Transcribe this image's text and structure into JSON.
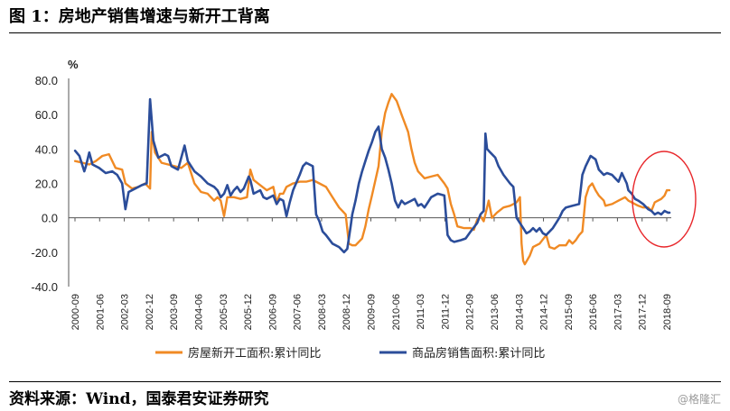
{
  "header": {
    "title": "图 1：房地产销售增速与新开工背离"
  },
  "footer": {
    "source": "资料来源：Wind，国泰君安证券研究",
    "watermark": "@格隆汇"
  },
  "chart_data": {
    "type": "line",
    "unit_label": "%",
    "ylim": [
      -40,
      80
    ],
    "y_ticks": [
      80.0,
      60.0,
      40.0,
      20.0,
      0.0,
      -20.0,
      -40.0
    ],
    "y_tick_labels": [
      "80.0",
      "60.0",
      "40.0",
      "20.0",
      "0.0",
      "-20.0",
      "-40.0"
    ],
    "x_tick_labels": [
      "2000-09",
      "2001-06",
      "2002-03",
      "2002-12",
      "2003-09",
      "2004-06",
      "2005-03",
      "2005-12",
      "2006-09",
      "2007-06",
      "2008-03",
      "2008-12",
      "2009-09",
      "2010-06",
      "2011-03",
      "2011-12",
      "2012-09",
      "2013-06",
      "2014-03",
      "2014-12",
      "2015-09",
      "2016-06",
      "2017-03",
      "2017-12",
      "2018-09"
    ],
    "grid": false,
    "legend_position": "bottom",
    "highlight": {
      "type": "ellipse",
      "color": "#e8262a",
      "note": "2017-12 至 2018-09"
    },
    "series": [
      {
        "name": "房屋新开工面积:累计同比",
        "color": "#f08a24",
        "points": [
          [
            2000.67,
            33
          ],
          [
            2000.9,
            32
          ],
          [
            2001.1,
            31
          ],
          [
            2001.3,
            33
          ],
          [
            2001.5,
            36
          ],
          [
            2001.7,
            37
          ],
          [
            2001.9,
            29
          ],
          [
            2002.1,
            28
          ],
          [
            2002.2,
            20
          ],
          [
            2002.4,
            17
          ],
          [
            2002.6,
            18
          ],
          [
            2002.8,
            20
          ],
          [
            2002.95,
            17
          ],
          [
            2003.0,
            50
          ],
          [
            2003.1,
            38
          ],
          [
            2003.3,
            32
          ],
          [
            2003.5,
            31
          ],
          [
            2003.7,
            30
          ],
          [
            2003.9,
            29
          ],
          [
            2004.1,
            32
          ],
          [
            2004.3,
            20
          ],
          [
            2004.5,
            15
          ],
          [
            2004.7,
            14
          ],
          [
            2004.9,
            10
          ],
          [
            2005.0,
            12
          ],
          [
            2005.1,
            10
          ],
          [
            2005.2,
            1
          ],
          [
            2005.3,
            12
          ],
          [
            2005.5,
            12
          ],
          [
            2005.7,
            11
          ],
          [
            2005.9,
            12
          ],
          [
            2006.0,
            28
          ],
          [
            2006.1,
            22
          ],
          [
            2006.3,
            19
          ],
          [
            2006.5,
            16
          ],
          [
            2006.7,
            18
          ],
          [
            2006.8,
            9
          ],
          [
            2006.9,
            14
          ],
          [
            2007.0,
            14
          ],
          [
            2007.1,
            18
          ],
          [
            2007.3,
            20
          ],
          [
            2007.5,
            21
          ],
          [
            2007.7,
            21
          ],
          [
            2007.9,
            22
          ],
          [
            2008.1,
            20
          ],
          [
            2008.3,
            18
          ],
          [
            2008.5,
            12
          ],
          [
            2008.7,
            6
          ],
          [
            2008.9,
            2
          ],
          [
            2009.0,
            -15
          ],
          [
            2009.1,
            -16
          ],
          [
            2009.2,
            -16
          ],
          [
            2009.4,
            -12
          ],
          [
            2009.5,
            -5
          ],
          [
            2009.6,
            5
          ],
          [
            2009.7,
            13
          ],
          [
            2009.9,
            30
          ],
          [
            2010.0,
            50
          ],
          [
            2010.1,
            61
          ],
          [
            2010.2,
            67
          ],
          [
            2010.3,
            72
          ],
          [
            2010.45,
            68
          ],
          [
            2010.6,
            60
          ],
          [
            2010.8,
            50
          ],
          [
            2010.9,
            40
          ],
          [
            2011.0,
            32
          ],
          [
            2011.1,
            27
          ],
          [
            2011.3,
            23
          ],
          [
            2011.5,
            24
          ],
          [
            2011.7,
            25
          ],
          [
            2011.9,
            20
          ],
          [
            2012.0,
            17
          ],
          [
            2012.1,
            8
          ],
          [
            2012.2,
            2
          ],
          [
            2012.3,
            -5
          ],
          [
            2012.5,
            -6
          ],
          [
            2012.7,
            -6
          ],
          [
            2012.8,
            -7
          ],
          [
            2012.9,
            -1
          ],
          [
            2013.0,
            1
          ],
          [
            2013.1,
            -2
          ],
          [
            2013.2,
            6
          ],
          [
            2013.25,
            10
          ],
          [
            2013.35,
            0
          ],
          [
            2013.5,
            3
          ],
          [
            2013.7,
            6
          ],
          [
            2013.9,
            7
          ],
          [
            2014.0,
            8
          ],
          [
            2014.1,
            9
          ],
          [
            2014.2,
            12
          ],
          [
            2014.25,
            -15
          ],
          [
            2014.3,
            -25
          ],
          [
            2014.35,
            -27
          ],
          [
            2014.5,
            -22
          ],
          [
            2014.6,
            -17
          ],
          [
            2014.8,
            -15
          ],
          [
            2015.0,
            -10
          ],
          [
            2015.1,
            -17
          ],
          [
            2015.25,
            -18
          ],
          [
            2015.4,
            -16
          ],
          [
            2015.6,
            -16
          ],
          [
            2015.7,
            -13
          ],
          [
            2015.8,
            -15
          ],
          [
            2015.9,
            -13
          ],
          [
            2016.0,
            -10
          ],
          [
            2016.1,
            -8
          ],
          [
            2016.2,
            12
          ],
          [
            2016.3,
            18
          ],
          [
            2016.4,
            20
          ],
          [
            2016.5,
            16
          ],
          [
            2016.6,
            13
          ],
          [
            2016.75,
            10
          ],
          [
            2016.8,
            7
          ],
          [
            2017.0,
            8
          ],
          [
            2017.1,
            9
          ],
          [
            2017.2,
            10
          ],
          [
            2017.3,
            11
          ],
          [
            2017.4,
            12
          ],
          [
            2017.5,
            10
          ],
          [
            2017.6,
            9
          ],
          [
            2017.7,
            8
          ],
          [
            2017.8,
            7
          ],
          [
            2017.95,
            6
          ],
          [
            2018.1,
            6
          ],
          [
            2018.2,
            4
          ],
          [
            2018.3,
            9
          ],
          [
            2018.4,
            10
          ],
          [
            2018.5,
            11
          ],
          [
            2018.6,
            13
          ],
          [
            2018.67,
            16
          ],
          [
            2018.75,
            16
          ]
        ]
      },
      {
        "name": "商品房销售面积:累计同比",
        "color": "#2b4d9a",
        "points": [
          [
            2000.67,
            39
          ],
          [
            2000.8,
            36
          ],
          [
            2000.95,
            27
          ],
          [
            2001.0,
            30
          ],
          [
            2001.1,
            38
          ],
          [
            2001.2,
            31
          ],
          [
            2001.4,
            29
          ],
          [
            2001.6,
            26
          ],
          [
            2001.8,
            27
          ],
          [
            2001.95,
            25
          ],
          [
            2002.1,
            20
          ],
          [
            2002.2,
            5
          ],
          [
            2002.3,
            15
          ],
          [
            2002.5,
            17
          ],
          [
            2002.7,
            19
          ],
          [
            2002.85,
            20
          ],
          [
            2002.95,
            69
          ],
          [
            2003.05,
            45
          ],
          [
            2003.2,
            35
          ],
          [
            2003.4,
            37
          ],
          [
            2003.5,
            36
          ],
          [
            2003.6,
            30
          ],
          [
            2003.8,
            28
          ],
          [
            2004.0,
            42
          ],
          [
            2004.1,
            33
          ],
          [
            2004.3,
            27
          ],
          [
            2004.5,
            24
          ],
          [
            2004.7,
            20
          ],
          [
            2004.9,
            18
          ],
          [
            2005.0,
            16
          ],
          [
            2005.1,
            12
          ],
          [
            2005.2,
            14
          ],
          [
            2005.3,
            19
          ],
          [
            2005.4,
            13
          ],
          [
            2005.5,
            16
          ],
          [
            2005.6,
            18
          ],
          [
            2005.7,
            15
          ],
          [
            2005.8,
            17
          ],
          [
            2005.95,
            24
          ],
          [
            2006.0,
            22
          ],
          [
            2006.1,
            14
          ],
          [
            2006.3,
            16
          ],
          [
            2006.4,
            12
          ],
          [
            2006.5,
            11
          ],
          [
            2006.7,
            13
          ],
          [
            2006.8,
            8
          ],
          [
            2006.9,
            11
          ],
          [
            2007.0,
            10
          ],
          [
            2007.1,
            1
          ],
          [
            2007.2,
            9
          ],
          [
            2007.3,
            16
          ],
          [
            2007.5,
            25
          ],
          [
            2007.6,
            30
          ],
          [
            2007.7,
            32
          ],
          [
            2007.9,
            30
          ],
          [
            2008.0,
            2
          ],
          [
            2008.1,
            -2
          ],
          [
            2008.2,
            -8
          ],
          [
            2008.3,
            -10
          ],
          [
            2008.5,
            -15
          ],
          [
            2008.7,
            -17
          ],
          [
            2008.85,
            -20
          ],
          [
            2008.95,
            -18
          ],
          [
            2009.05,
            -5
          ],
          [
            2009.1,
            2
          ],
          [
            2009.2,
            10
          ],
          [
            2009.3,
            20
          ],
          [
            2009.4,
            27
          ],
          [
            2009.5,
            33
          ],
          [
            2009.6,
            39
          ],
          [
            2009.7,
            44
          ],
          [
            2009.8,
            50
          ],
          [
            2009.9,
            53
          ],
          [
            2010.0,
            40
          ],
          [
            2010.1,
            35
          ],
          [
            2010.2,
            28
          ],
          [
            2010.3,
            20
          ],
          [
            2010.4,
            10
          ],
          [
            2010.5,
            6
          ],
          [
            2010.6,
            10
          ],
          [
            2010.7,
            8
          ],
          [
            2010.8,
            9
          ],
          [
            2010.9,
            10
          ],
          [
            2011.0,
            11
          ],
          [
            2011.1,
            7
          ],
          [
            2011.2,
            8
          ],
          [
            2011.3,
            6
          ],
          [
            2011.4,
            9
          ],
          [
            2011.5,
            12
          ],
          [
            2011.7,
            14
          ],
          [
            2011.9,
            13
          ],
          [
            2012.0,
            -10
          ],
          [
            2012.1,
            -13
          ],
          [
            2012.2,
            -14
          ],
          [
            2012.4,
            -13
          ],
          [
            2012.55,
            -12
          ],
          [
            2012.7,
            -8
          ],
          [
            2012.9,
            -3
          ],
          [
            2013.0,
            2
          ],
          [
            2013.1,
            4
          ],
          [
            2013.15,
            49
          ],
          [
            2013.2,
            40
          ],
          [
            2013.3,
            38
          ],
          [
            2013.45,
            35
          ],
          [
            2013.55,
            30
          ],
          [
            2013.7,
            25
          ],
          [
            2013.9,
            20
          ],
          [
            2014.0,
            18
          ],
          [
            2014.1,
            0
          ],
          [
            2014.2,
            -3
          ],
          [
            2014.3,
            -6
          ],
          [
            2014.4,
            -9
          ],
          [
            2014.5,
            -8
          ],
          [
            2014.6,
            -6
          ],
          [
            2014.7,
            -8
          ],
          [
            2014.8,
            -6
          ],
          [
            2014.9,
            -9
          ],
          [
            2015.0,
            -10
          ],
          [
            2015.05,
            -9
          ],
          [
            2015.2,
            -6
          ],
          [
            2015.3,
            -3
          ],
          [
            2015.4,
            0
          ],
          [
            2015.5,
            4
          ],
          [
            2015.6,
            6
          ],
          [
            2015.8,
            7
          ],
          [
            2016.0,
            8
          ],
          [
            2016.1,
            25
          ],
          [
            2016.2,
            30
          ],
          [
            2016.35,
            36
          ],
          [
            2016.5,
            34
          ],
          [
            2016.6,
            28
          ],
          [
            2016.75,
            25
          ],
          [
            2016.85,
            26
          ],
          [
            2017.0,
            25
          ],
          [
            2017.1,
            23
          ],
          [
            2017.2,
            21
          ],
          [
            2017.3,
            26
          ],
          [
            2017.45,
            20
          ],
          [
            2017.5,
            16
          ],
          [
            2017.6,
            14
          ],
          [
            2017.7,
            11
          ],
          [
            2017.8,
            10
          ],
          [
            2017.95,
            8
          ],
          [
            2018.0,
            7
          ],
          [
            2018.1,
            5
          ],
          [
            2018.2,
            4
          ],
          [
            2018.3,
            2
          ],
          [
            2018.4,
            3
          ],
          [
            2018.5,
            2
          ],
          [
            2018.6,
            4
          ],
          [
            2018.7,
            3
          ],
          [
            2018.75,
            3
          ]
        ]
      }
    ]
  }
}
